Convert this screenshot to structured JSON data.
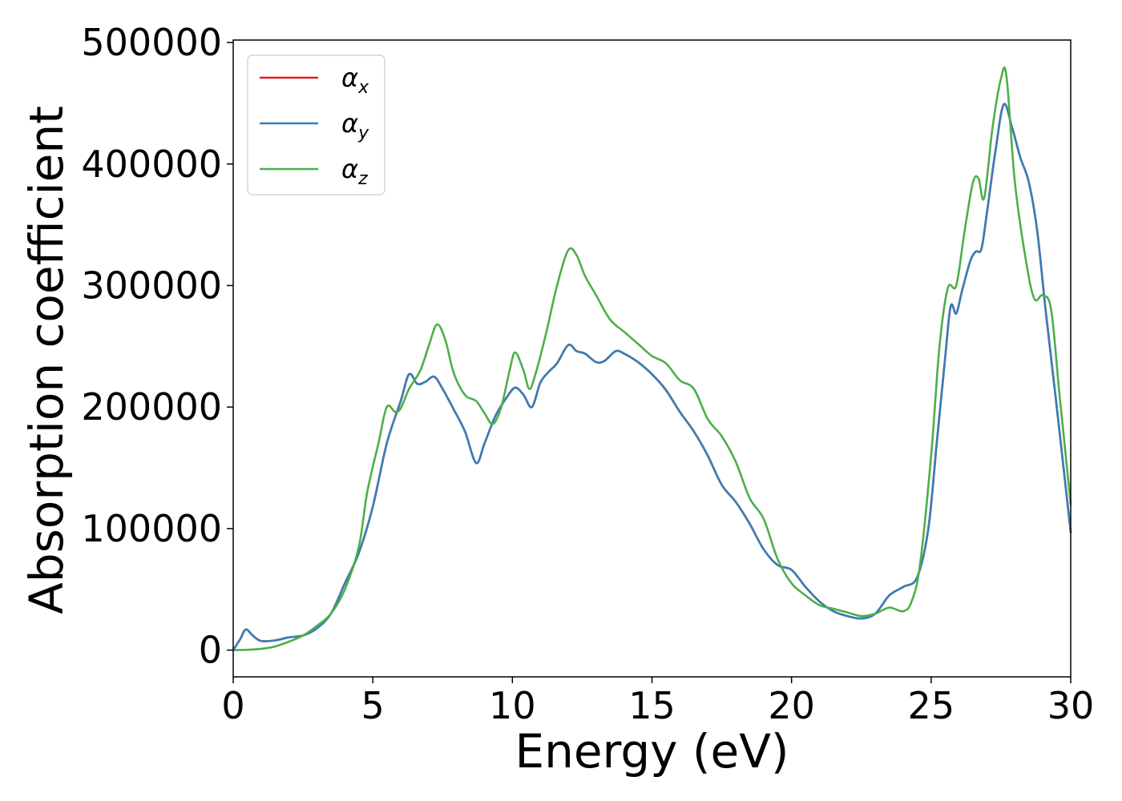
{
  "chart_data": {
    "type": "line",
    "title": "",
    "xlabel": "Energy (eV)",
    "ylabel": "Absorption coefficient",
    "xlim": [
      0,
      30
    ],
    "ylim": [
      -22000,
      502000
    ],
    "xticks": [
      0,
      5,
      10,
      15,
      20,
      25,
      30
    ],
    "yticks": [
      0,
      100000,
      200000,
      300000,
      400000,
      500000
    ],
    "xtick_labels": [
      "0",
      "5",
      "10",
      "15",
      "20",
      "25",
      "30"
    ],
    "ytick_labels": [
      "0",
      "100000",
      "200000",
      "300000",
      "400000",
      "500000"
    ],
    "grid": false,
    "legend_position": "top-left",
    "series": [
      {
        "name": "α",
        "subscript": "x",
        "color": "#e41a1c",
        "points": [
          [
            0.0,
            0
          ],
          [
            0.25,
            9000
          ],
          [
            0.45,
            17000
          ],
          [
            0.7,
            12000
          ],
          [
            1.0,
            7500
          ],
          [
            1.5,
            8000
          ],
          [
            2.0,
            10500
          ],
          [
            2.5,
            12000
          ],
          [
            3.0,
            18000
          ],
          [
            3.5,
            30000
          ],
          [
            4.0,
            55000
          ],
          [
            4.5,
            80000
          ],
          [
            5.0,
            118000
          ],
          [
            5.5,
            170000
          ],
          [
            6.0,
            205000
          ],
          [
            6.3,
            227000
          ],
          [
            6.6,
            219000
          ],
          [
            6.9,
            221000
          ],
          [
            7.2,
            225000
          ],
          [
            7.5,
            215000
          ],
          [
            7.9,
            198000
          ],
          [
            8.3,
            180000
          ],
          [
            8.7,
            154000
          ],
          [
            9.0,
            170000
          ],
          [
            9.4,
            193000
          ],
          [
            9.8,
            208000
          ],
          [
            10.1,
            216000
          ],
          [
            10.4,
            210000
          ],
          [
            10.7,
            200000
          ],
          [
            11.0,
            220000
          ],
          [
            11.3,
            229000
          ],
          [
            11.6,
            236000
          ],
          [
            12.0,
            251000
          ],
          [
            12.3,
            246000
          ],
          [
            12.6,
            244000
          ],
          [
            13.0,
            237000
          ],
          [
            13.3,
            238000
          ],
          [
            13.7,
            246000
          ],
          [
            14.0,
            244000
          ],
          [
            14.5,
            237000
          ],
          [
            15.0,
            227000
          ],
          [
            15.5,
            214000
          ],
          [
            16.0,
            196000
          ],
          [
            16.5,
            180000
          ],
          [
            17.0,
            160000
          ],
          [
            17.5,
            136000
          ],
          [
            18.0,
            122000
          ],
          [
            18.5,
            104000
          ],
          [
            19.0,
            83000
          ],
          [
            19.5,
            70000
          ],
          [
            20.0,
            66000
          ],
          [
            20.5,
            52000
          ],
          [
            21.0,
            40000
          ],
          [
            21.5,
            32000
          ],
          [
            22.0,
            28000
          ],
          [
            22.5,
            26000
          ],
          [
            23.0,
            30000
          ],
          [
            23.5,
            45000
          ],
          [
            24.0,
            52000
          ],
          [
            24.5,
            60000
          ],
          [
            24.9,
            100000
          ],
          [
            25.2,
            170000
          ],
          [
            25.5,
            240000
          ],
          [
            25.7,
            283000
          ],
          [
            25.9,
            277000
          ],
          [
            26.1,
            295000
          ],
          [
            26.4,
            320000
          ],
          [
            26.6,
            328000
          ],
          [
            26.8,
            330000
          ],
          [
            27.0,
            360000
          ],
          [
            27.3,
            410000
          ],
          [
            27.6,
            449000
          ],
          [
            27.9,
            430000
          ],
          [
            28.2,
            405000
          ],
          [
            28.5,
            385000
          ],
          [
            28.8,
            345000
          ],
          [
            29.1,
            280000
          ],
          [
            29.5,
            200000
          ],
          [
            30.0,
            97000
          ]
        ]
      },
      {
        "name": "α",
        "subscript": "y",
        "color": "#377eb8",
        "points": [
          [
            0.0,
            0
          ],
          [
            0.25,
            9000
          ],
          [
            0.45,
            17000
          ],
          [
            0.7,
            12000
          ],
          [
            1.0,
            7500
          ],
          [
            1.5,
            8000
          ],
          [
            2.0,
            10500
          ],
          [
            2.5,
            12000
          ],
          [
            3.0,
            18000
          ],
          [
            3.5,
            30000
          ],
          [
            4.0,
            55000
          ],
          [
            4.5,
            80000
          ],
          [
            5.0,
            118000
          ],
          [
            5.5,
            170000
          ],
          [
            6.0,
            205000
          ],
          [
            6.3,
            227000
          ],
          [
            6.6,
            219000
          ],
          [
            6.9,
            221000
          ],
          [
            7.2,
            225000
          ],
          [
            7.5,
            215000
          ],
          [
            7.9,
            198000
          ],
          [
            8.3,
            180000
          ],
          [
            8.7,
            154000
          ],
          [
            9.0,
            170000
          ],
          [
            9.4,
            193000
          ],
          [
            9.8,
            208000
          ],
          [
            10.1,
            216000
          ],
          [
            10.4,
            210000
          ],
          [
            10.7,
            200000
          ],
          [
            11.0,
            220000
          ],
          [
            11.3,
            229000
          ],
          [
            11.6,
            236000
          ],
          [
            12.0,
            251000
          ],
          [
            12.3,
            246000
          ],
          [
            12.6,
            244000
          ],
          [
            13.0,
            237000
          ],
          [
            13.3,
            238000
          ],
          [
            13.7,
            246000
          ],
          [
            14.0,
            244000
          ],
          [
            14.5,
            237000
          ],
          [
            15.0,
            227000
          ],
          [
            15.5,
            214000
          ],
          [
            16.0,
            196000
          ],
          [
            16.5,
            180000
          ],
          [
            17.0,
            160000
          ],
          [
            17.5,
            136000
          ],
          [
            18.0,
            122000
          ],
          [
            18.5,
            104000
          ],
          [
            19.0,
            83000
          ],
          [
            19.5,
            70000
          ],
          [
            20.0,
            66000
          ],
          [
            20.5,
            52000
          ],
          [
            21.0,
            40000
          ],
          [
            21.5,
            32000
          ],
          [
            22.0,
            28000
          ],
          [
            22.5,
            26000
          ],
          [
            23.0,
            30000
          ],
          [
            23.5,
            45000
          ],
          [
            24.0,
            52000
          ],
          [
            24.5,
            60000
          ],
          [
            24.9,
            100000
          ],
          [
            25.2,
            170000
          ],
          [
            25.5,
            240000
          ],
          [
            25.7,
            283000
          ],
          [
            25.9,
            277000
          ],
          [
            26.1,
            295000
          ],
          [
            26.4,
            320000
          ],
          [
            26.6,
            328000
          ],
          [
            26.8,
            330000
          ],
          [
            27.0,
            360000
          ],
          [
            27.3,
            410000
          ],
          [
            27.6,
            449000
          ],
          [
            27.9,
            430000
          ],
          [
            28.2,
            405000
          ],
          [
            28.5,
            385000
          ],
          [
            28.8,
            345000
          ],
          [
            29.1,
            280000
          ],
          [
            29.5,
            200000
          ],
          [
            30.0,
            97000
          ]
        ]
      },
      {
        "name": "α",
        "subscript": "z",
        "color": "#4daf4a",
        "points": [
          [
            0.0,
            0
          ],
          [
            0.5,
            300
          ],
          [
            1.0,
            1000
          ],
          [
            1.5,
            3000
          ],
          [
            2.0,
            7000
          ],
          [
            2.5,
            12000
          ],
          [
            3.0,
            20000
          ],
          [
            3.5,
            30000
          ],
          [
            4.0,
            50000
          ],
          [
            4.5,
            85000
          ],
          [
            4.8,
            130000
          ],
          [
            5.2,
            170000
          ],
          [
            5.5,
            200000
          ],
          [
            5.8,
            196000
          ],
          [
            6.0,
            199000
          ],
          [
            6.3,
            215000
          ],
          [
            6.7,
            230000
          ],
          [
            7.0,
            250000
          ],
          [
            7.3,
            268000
          ],
          [
            7.6,
            255000
          ],
          [
            7.9,
            228000
          ],
          [
            8.3,
            210000
          ],
          [
            8.7,
            205000
          ],
          [
            9.0,
            195000
          ],
          [
            9.3,
            186000
          ],
          [
            9.6,
            200000
          ],
          [
            9.9,
            230000
          ],
          [
            10.1,
            245000
          ],
          [
            10.4,
            230000
          ],
          [
            10.6,
            215000
          ],
          [
            10.8,
            225000
          ],
          [
            11.2,
            260000
          ],
          [
            11.6,
            300000
          ],
          [
            12.0,
            329000
          ],
          [
            12.3,
            325000
          ],
          [
            12.6,
            308000
          ],
          [
            13.0,
            292000
          ],
          [
            13.5,
            272000
          ],
          [
            14.0,
            262000
          ],
          [
            14.5,
            252000
          ],
          [
            15.0,
            242000
          ],
          [
            15.5,
            236000
          ],
          [
            16.0,
            222000
          ],
          [
            16.5,
            215000
          ],
          [
            17.0,
            190000
          ],
          [
            17.5,
            176000
          ],
          [
            18.0,
            155000
          ],
          [
            18.5,
            125000
          ],
          [
            19.0,
            108000
          ],
          [
            19.5,
            75000
          ],
          [
            20.0,
            55000
          ],
          [
            20.5,
            45000
          ],
          [
            21.0,
            37000
          ],
          [
            21.5,
            34000
          ],
          [
            22.0,
            31000
          ],
          [
            22.5,
            28000
          ],
          [
            23.0,
            30000
          ],
          [
            23.5,
            35000
          ],
          [
            24.0,
            32000
          ],
          [
            24.3,
            40000
          ],
          [
            24.6,
            70000
          ],
          [
            25.0,
            160000
          ],
          [
            25.3,
            250000
          ],
          [
            25.6,
            298000
          ],
          [
            25.9,
            300000
          ],
          [
            26.2,
            345000
          ],
          [
            26.5,
            385000
          ],
          [
            26.7,
            388000
          ],
          [
            26.9,
            372000
          ],
          [
            27.2,
            430000
          ],
          [
            27.5,
            470000
          ],
          [
            27.7,
            472000
          ],
          [
            28.0,
            385000
          ],
          [
            28.4,
            320000
          ],
          [
            28.7,
            289000
          ],
          [
            29.0,
            292000
          ],
          [
            29.3,
            280000
          ],
          [
            29.6,
            210000
          ],
          [
            30.0,
            120000
          ]
        ]
      }
    ]
  }
}
